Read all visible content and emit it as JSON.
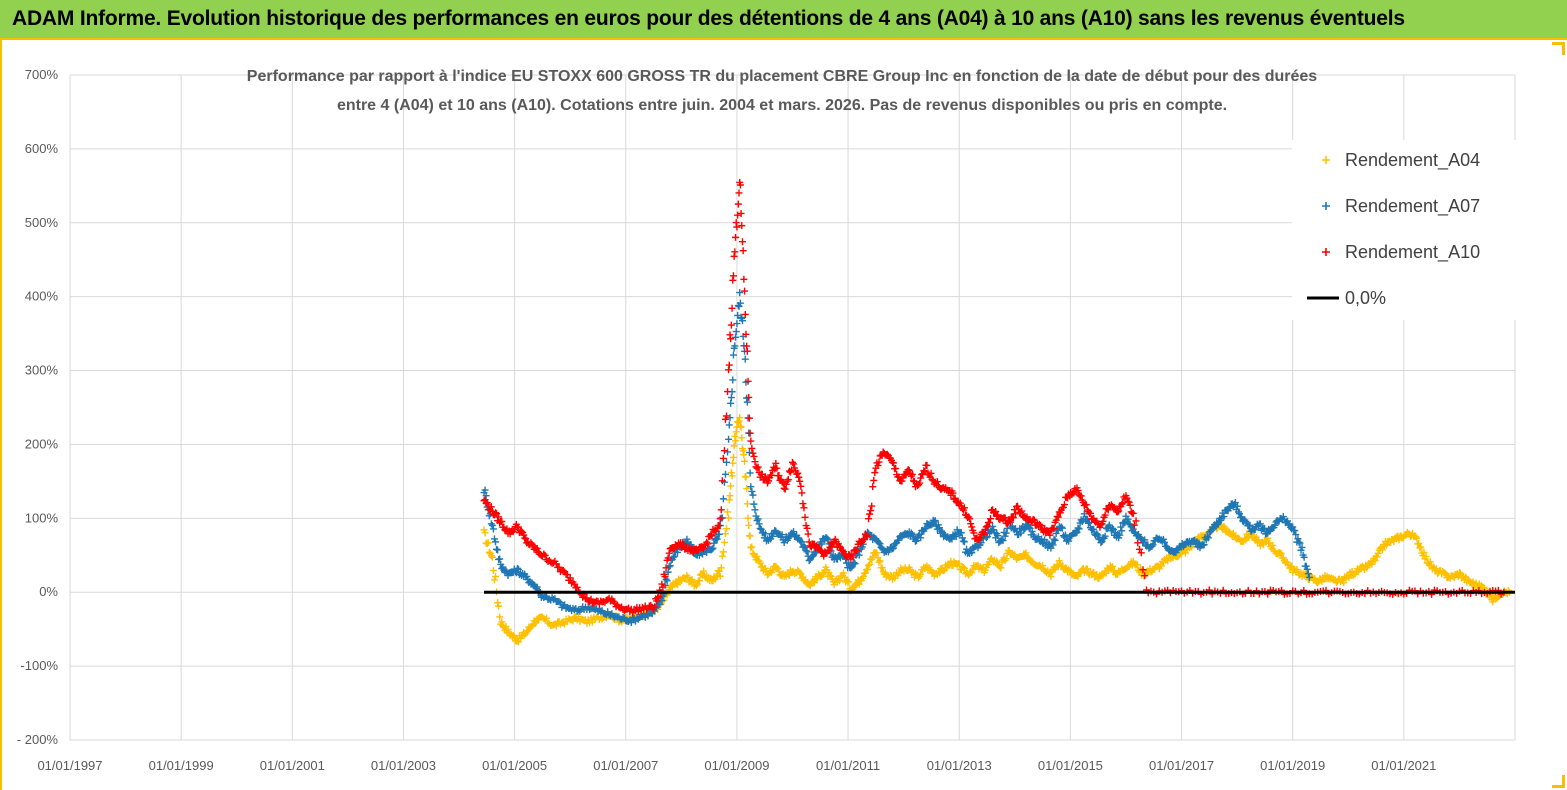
{
  "header": {
    "banner_title": "ADAM Informe. Evolution historique des performances en euros pour des détentions de 4 ans (A04) à 10 ans (A10) sans les revenus éventuels"
  },
  "chart_data": {
    "type": "scatter",
    "title_line1": "Performance par rapport à l'indice EU STOXX 600 GROSS TR  du placement CBRE Group Inc en fonction de la date de début pour des durées",
    "title_line2": "entre 4 (A04) et 10 ans (A10). Cotations entre juin. 2004 et mars. 2026.  Pas de revenus disponibles ou pris en compte.",
    "x_tick_labels": [
      "01/01/1997",
      "01/01/1999",
      "01/01/2001",
      "01/01/2003",
      "01/01/2005",
      "01/01/2007",
      "01/01/2009",
      "01/01/2011",
      "01/01/2013",
      "01/01/2015",
      "01/01/2017",
      "01/01/2019",
      "01/01/2021"
    ],
    "xlim": [
      1997.0,
      2023.0
    ],
    "y_tick_labels": [
      "- 200%",
      "-100%",
      "0%",
      "100%",
      "200%",
      "300%",
      "400%",
      "500%",
      "600%",
      "700%"
    ],
    "ylim": [
      -200,
      700
    ],
    "grid": true,
    "legend_position": "top-right",
    "series": [
      {
        "name": "Rendement_A04",
        "color": "#ffc000",
        "marker": "+",
        "x": [
          2004.45,
          2004.6,
          2004.75,
          2004.9,
          2005.05,
          2005.2,
          2005.35,
          2005.5,
          2005.7,
          2005.9,
          2006.1,
          2006.3,
          2006.5,
          2006.7,
          2006.9,
          2007.1,
          2007.3,
          2007.5,
          2007.65,
          2007.8,
          2007.95,
          2008.1,
          2008.25,
          2008.4,
          2008.55,
          2008.7,
          2008.85,
          2008.95,
          2009.05,
          2009.15,
          2009.25,
          2009.4,
          2009.55,
          2009.7,
          2009.85,
          2010.0,
          2010.15,
          2010.3,
          2010.45,
          2010.6,
          2010.75,
          2010.9,
          2011.05,
          2011.2,
          2011.35,
          2011.5,
          2011.65,
          2011.8,
          2011.95,
          2012.1,
          2012.25,
          2012.4,
          2012.55,
          2012.7,
          2012.85,
          2013.0,
          2013.15,
          2013.3,
          2013.45,
          2013.6,
          2013.75,
          2013.9,
          2014.05,
          2014.2,
          2014.35,
          2014.5,
          2014.65,
          2014.8,
          2014.95,
          2015.1,
          2015.25,
          2015.4,
          2015.55,
          2015.7,
          2015.85,
          2016.0,
          2016.15,
          2016.3,
          2016.45,
          2016.6,
          2016.75,
          2016.9,
          2017.05,
          2017.2,
          2017.35,
          2017.5,
          2017.65,
          2017.8,
          2017.95,
          2018.1,
          2018.25,
          2018.4,
          2018.55,
          2018.7,
          2018.85,
          2019.0,
          2019.15,
          2019.3,
          2019.45,
          2019.6,
          2019.75,
          2019.9,
          2020.05,
          2020.2,
          2020.35,
          2020.5,
          2020.65,
          2020.8,
          2020.95,
          2021.1,
          2021.25,
          2021.4,
          2021.55,
          2021.7,
          2021.85,
          2022.0,
          2022.15,
          2022.3,
          2022.45,
          2022.6,
          2022.75,
          2022.9
        ],
        "y": [
          80,
          45,
          -40,
          -55,
          -65,
          -55,
          -40,
          -35,
          -45,
          -40,
          -35,
          -40,
          -35,
          -30,
          -38,
          -35,
          -30,
          -25,
          -15,
          5,
          15,
          20,
          10,
          25,
          15,
          30,
          110,
          200,
          240,
          160,
          60,
          40,
          25,
          35,
          20,
          30,
          25,
          10,
          20,
          30,
          10,
          25,
          5,
          15,
          35,
          55,
          25,
          20,
          30,
          30,
          20,
          35,
          25,
          30,
          40,
          35,
          25,
          35,
          30,
          45,
          35,
          55,
          45,
          50,
          40,
          35,
          25,
          40,
          30,
          20,
          30,
          25,
          20,
          35,
          25,
          35,
          40,
          25,
          30,
          35,
          45,
          50,
          55,
          65,
          75,
          80,
          90,
          85,
          75,
          70,
          80,
          65,
          70,
          55,
          45,
          30,
          25,
          20,
          15,
          20,
          15,
          15,
          25,
          30,
          35,
          45,
          65,
          70,
          75,
          80,
          70,
          45,
          30,
          25,
          20,
          25,
          15,
          10,
          5,
          -10,
          0,
          0
        ]
      },
      {
        "name": "Rendement_A07",
        "color": "#1f77b4",
        "marker": "+",
        "x": [
          2004.45,
          2004.6,
          2004.75,
          2004.9,
          2005.05,
          2005.2,
          2005.35,
          2005.5,
          2005.7,
          2005.9,
          2006.1,
          2006.3,
          2006.5,
          2006.7,
          2006.9,
          2007.1,
          2007.3,
          2007.5,
          2007.65,
          2007.8,
          2007.95,
          2008.1,
          2008.25,
          2008.4,
          2008.55,
          2008.7,
          2008.85,
          2008.95,
          2009.05,
          2009.15,
          2009.25,
          2009.4,
          2009.55,
          2009.7,
          2009.85,
          2010.0,
          2010.15,
          2010.3,
          2010.45,
          2010.6,
          2010.75,
          2010.9,
          2011.05,
          2011.2,
          2011.35,
          2011.5,
          2011.65,
          2011.8,
          2011.95,
          2012.1,
          2012.25,
          2012.4,
          2012.55,
          2012.7,
          2012.85,
          2013.0,
          2013.15,
          2013.3,
          2013.45,
          2013.6,
          2013.75,
          2013.9,
          2014.05,
          2014.2,
          2014.35,
          2014.5,
          2014.65,
          2014.8,
          2014.95,
          2015.1,
          2015.25,
          2015.4,
          2015.55,
          2015.7,
          2015.85,
          2016.0,
          2016.15,
          2016.3,
          2016.45,
          2016.6,
          2016.75,
          2016.9,
          2017.05,
          2017.2,
          2017.35,
          2017.5,
          2017.65,
          2017.8,
          2017.95,
          2018.1,
          2018.25,
          2018.4,
          2018.55,
          2018.7,
          2018.85,
          2019.0,
          2019.15,
          2019.3
        ],
        "y": [
          140,
          90,
          35,
          25,
          30,
          20,
          10,
          -5,
          -10,
          -20,
          -25,
          -20,
          -25,
          -30,
          -35,
          -38,
          -32,
          -28,
          -10,
          40,
          60,
          70,
          50,
          55,
          60,
          80,
          200,
          330,
          400,
          320,
          140,
          90,
          70,
          85,
          70,
          80,
          70,
          45,
          60,
          75,
          45,
          50,
          30,
          55,
          80,
          70,
          55,
          60,
          75,
          80,
          70,
          90,
          95,
          80,
          70,
          85,
          50,
          60,
          75,
          85,
          65,
          95,
          80,
          90,
          75,
          70,
          60,
          90,
          70,
          80,
          105,
          85,
          70,
          90,
          75,
          100,
          80,
          70,
          60,
          75,
          60,
          55,
          65,
          70,
          60,
          80,
          95,
          110,
          120,
          100,
          85,
          90,
          80,
          95,
          100,
          85,
          60,
          20
        ]
      },
      {
        "name": "Rendement_A10",
        "color": "#ff0000",
        "marker": "+",
        "x": [
          2004.45,
          2004.6,
          2004.75,
          2004.9,
          2005.05,
          2005.2,
          2005.35,
          2005.5,
          2005.7,
          2005.9,
          2006.1,
          2006.3,
          2006.5,
          2006.7,
          2006.9,
          2007.1,
          2007.3,
          2007.5,
          2007.65,
          2007.8,
          2007.95,
          2008.1,
          2008.25,
          2008.4,
          2008.55,
          2008.7,
          2008.85,
          2008.95,
          2009.05,
          2009.15,
          2009.25,
          2009.4,
          2009.55,
          2009.7,
          2009.85,
          2010.0,
          2010.15,
          2010.3,
          2010.45,
          2010.6,
          2010.75,
          2010.9,
          2011.05,
          2011.2,
          2011.35,
          2011.5,
          2011.65,
          2011.8,
          2011.95,
          2012.1,
          2012.25,
          2012.4,
          2012.55,
          2012.7,
          2012.85,
          2013.0,
          2013.15,
          2013.3,
          2013.45,
          2013.6,
          2013.75,
          2013.9,
          2014.05,
          2014.2,
          2014.35,
          2014.5,
          2014.65,
          2014.8,
          2014.95,
          2015.1,
          2015.25,
          2015.4,
          2015.55,
          2015.7,
          2015.85,
          2016.0,
          2016.15,
          2016.4,
          2016.8,
          2017.2,
          2017.6,
          2018.0,
          2018.4,
          2018.8,
          2019.2,
          2019.6,
          2020.0,
          2020.4,
          2020.8,
          2021.2,
          2021.6,
          2022.0,
          2022.4,
          2022.8
        ],
        "y": [
          125,
          110,
          95,
          80,
          90,
          70,
          60,
          50,
          40,
          25,
          10,
          -10,
          -15,
          -10,
          -20,
          -25,
          -22,
          -20,
          5,
          60,
          65,
          60,
          55,
          60,
          80,
          90,
          300,
          450,
          560,
          380,
          200,
          160,
          150,
          170,
          140,
          175,
          150,
          65,
          60,
          50,
          70,
          55,
          45,
          65,
          80,
          170,
          190,
          175,
          150,
          165,
          140,
          170,
          150,
          140,
          135,
          120,
          105,
          70,
          80,
          110,
          100,
          95,
          115,
          100,
          95,
          85,
          80,
          105,
          130,
          140,
          120,
          100,
          90,
          120,
          110,
          130,
          100,
          0,
          0,
          0,
          0,
          0,
          0,
          0,
          0,
          0,
          0,
          0,
          0,
          0,
          0,
          0,
          0,
          0
        ]
      },
      {
        "name": "0,0%",
        "color": "#000000",
        "type": "line",
        "x": [
          2004.45,
          2023.0
        ],
        "y": [
          0,
          0
        ]
      }
    ]
  }
}
